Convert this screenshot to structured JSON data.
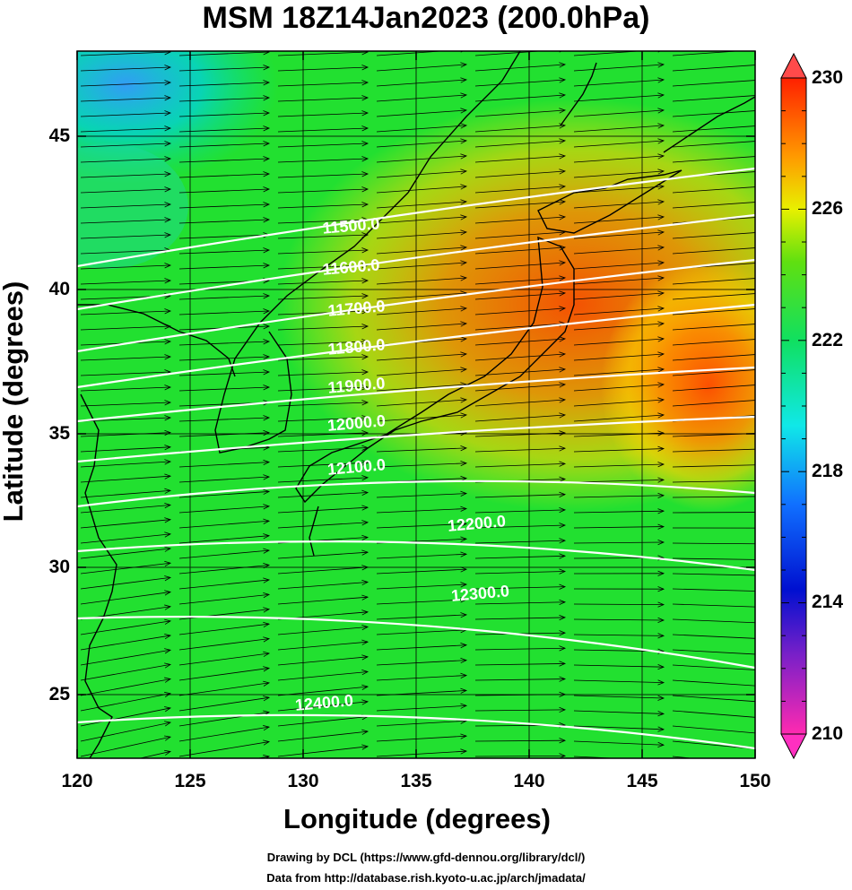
{
  "title": "MSM 18Z14Jan2023 (200.0hPa)",
  "x_axis": {
    "label": "Longitude (degrees)",
    "ticks": [
      "120",
      "125",
      "130",
      "135",
      "140",
      "145",
      "150"
    ]
  },
  "y_axis": {
    "label": "Latitude  (degrees)",
    "ticks": [
      "45",
      "40",
      "35",
      "30",
      "25"
    ]
  },
  "colorbar": {
    "ticks": [
      "230",
      "226",
      "222",
      "218",
      "214",
      "210"
    ],
    "range": [
      210,
      230
    ]
  },
  "contours": [
    {
      "label": "11500.0"
    },
    {
      "label": "11600.0"
    },
    {
      "label": "11700.0"
    },
    {
      "label": "11800.0"
    },
    {
      "label": "11900.0"
    },
    {
      "label": "12000.0"
    },
    {
      "label": "12100.0"
    },
    {
      "label": "12200.0"
    },
    {
      "label": "12300.0"
    },
    {
      "label": "12400.0"
    }
  ],
  "credits": [
    "Drawing by DCL (https://www.gfd-dennou.org/library/dcl/)",
    "Data from http://database.rish.kyoto-u.ac.jp/arch/jmadata/"
  ],
  "colors": {
    "warm": "#ff4500",
    "mid": "#ffe600",
    "cool": "#00e640",
    "cold": "#1e90ff"
  }
}
